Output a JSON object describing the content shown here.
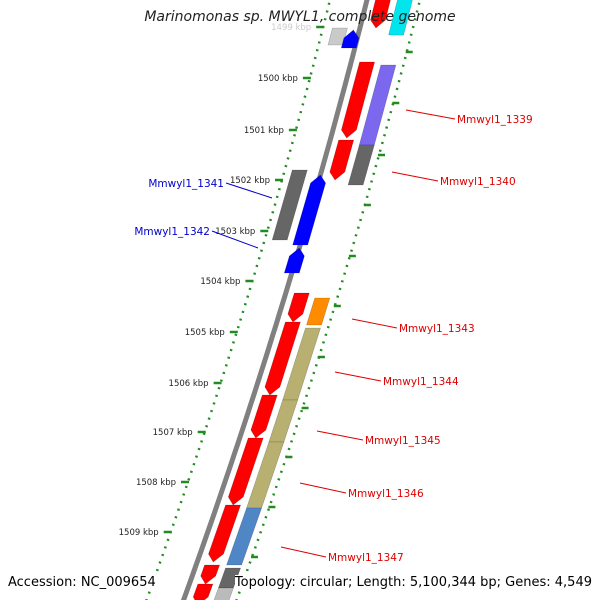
{
  "title": "Marinomonas sp. MWYL1, complete genome",
  "footer": {
    "accession": "Accession: NC_009654",
    "topology": "Topology: circular; Length: 5,100,344 bp; Genes: 4,549"
  },
  "ticks": [
    {
      "label": "1499 kbp"
    },
    {
      "label": "1500 kbp"
    },
    {
      "label": "1501 kbp"
    },
    {
      "label": "1502 kbp"
    },
    {
      "label": "1503 kbp"
    },
    {
      "label": "1504 kbp"
    },
    {
      "label": "1505 kbp"
    },
    {
      "label": "1506 kbp"
    },
    {
      "label": "1507 kbp"
    },
    {
      "label": "1508 kbp"
    },
    {
      "label": "1509 kbp"
    }
  ],
  "gene_labels": [
    {
      "text": "Mmwyl1_1339",
      "strand": "forward"
    },
    {
      "text": "Mmwyl1_1340",
      "strand": "forward"
    },
    {
      "text": "Mmwyl1_1341",
      "strand": "reverse"
    },
    {
      "text": "Mmwyl1_1342",
      "strand": "reverse"
    },
    {
      "text": "Mmwyl1_1343",
      "strand": "forward"
    },
    {
      "text": "Mmwyl1_1344",
      "strand": "forward"
    },
    {
      "text": "Mmwyl1_1345",
      "strand": "forward"
    },
    {
      "text": "Mmwyl1_1346",
      "strand": "forward"
    },
    {
      "text": "Mmwyl1_1347",
      "strand": "forward"
    }
  ],
  "colors": {
    "backbone": "#808080",
    "tick_ring": "#228B22",
    "cds": "#ff0000",
    "reverse_cds": "#0000ff",
    "gray_feature": "#666666",
    "cog_purple": "#7b68ee",
    "cog_orange": "#ff8c00",
    "cog_khaki": "#b8b070",
    "cog_steelblue": "#4f86c6",
    "cog_cyan": "#00e5ee",
    "label_forward": "#dd0000",
    "label_reverse": "#0000cc"
  }
}
